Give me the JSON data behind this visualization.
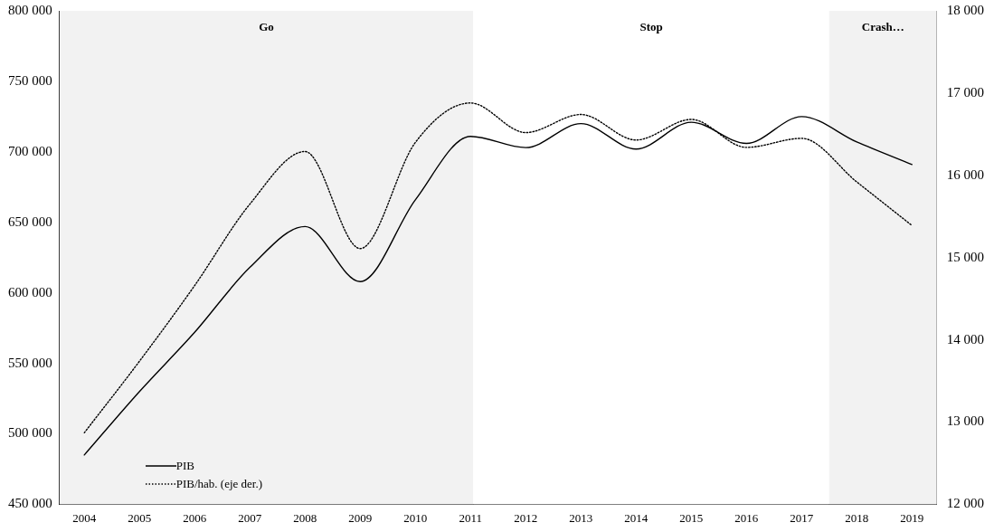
{
  "chart_data": {
    "type": "line",
    "x": [
      2004,
      2005,
      2006,
      2007,
      2008,
      2009,
      2010,
      2011,
      2012,
      2013,
      2014,
      2015,
      2016,
      2017,
      2018,
      2019
    ],
    "xlim": [
      2003.55,
      2019.45
    ],
    "xticks": [
      2004,
      2005,
      2006,
      2007,
      2008,
      2009,
      2010,
      2011,
      2012,
      2013,
      2014,
      2015,
      2016,
      2017,
      2018,
      2019
    ],
    "ylim": [
      450000,
      800000
    ],
    "yticks": [
      {
        "value": 450000,
        "label": "450 000"
      },
      {
        "value": 500000,
        "label": "500 000"
      },
      {
        "value": 550000,
        "label": "550 000"
      },
      {
        "value": 600000,
        "label": "600 000"
      },
      {
        "value": 650000,
        "label": "650 000"
      },
      {
        "value": 700000,
        "label": "700 000"
      },
      {
        "value": 750000,
        "label": "750 000"
      },
      {
        "value": 800000,
        "label": "800 000"
      }
    ],
    "y2lim": [
      12000,
      18000
    ],
    "y2ticks": [
      {
        "value": 12000,
        "label": "12 000"
      },
      {
        "value": 13000,
        "label": "13 000"
      },
      {
        "value": 14000,
        "label": "14 000"
      },
      {
        "value": 15000,
        "label": "15 000"
      },
      {
        "value": 16000,
        "label": "16 000"
      },
      {
        "value": 17000,
        "label": "17 000"
      },
      {
        "value": 18000,
        "label": "18 000"
      }
    ],
    "series": [
      {
        "name": "PIB",
        "color": "#000000",
        "line_style": "solid",
        "values": [
          485000,
          530000,
          572000,
          618000,
          647000,
          608000,
          666000,
          711000,
          703000,
          720000,
          702000,
          721000,
          706000,
          725000,
          707000,
          691000
        ]
      },
      {
        "name": "PIB/hab. (eje der.)",
        "color": "#000000",
        "line_style": "dotted",
        "axis": "y2",
        "values": [
          12870,
          13740,
          14660,
          15650,
          16290,
          15110,
          16400,
          16880,
          16520,
          16740,
          16430,
          16680,
          16340,
          16450,
          15920,
          15390
        ]
      }
    ],
    "bands": [
      {
        "axis": "x",
        "from": 2003.55,
        "to": 2011.05,
        "label": "Go",
        "color": "#f2f2f2"
      },
      {
        "axis": "x",
        "from": 2011.05,
        "to": 2017.5,
        "label": "Stop",
        "color": "#ffffff"
      },
      {
        "axis": "x",
        "from": 2017.5,
        "to": 2019.45,
        "label": "Crash…",
        "color": "#f2f2f2"
      }
    ],
    "legend": "bottom left",
    "grid": false,
    "marker": "none"
  }
}
